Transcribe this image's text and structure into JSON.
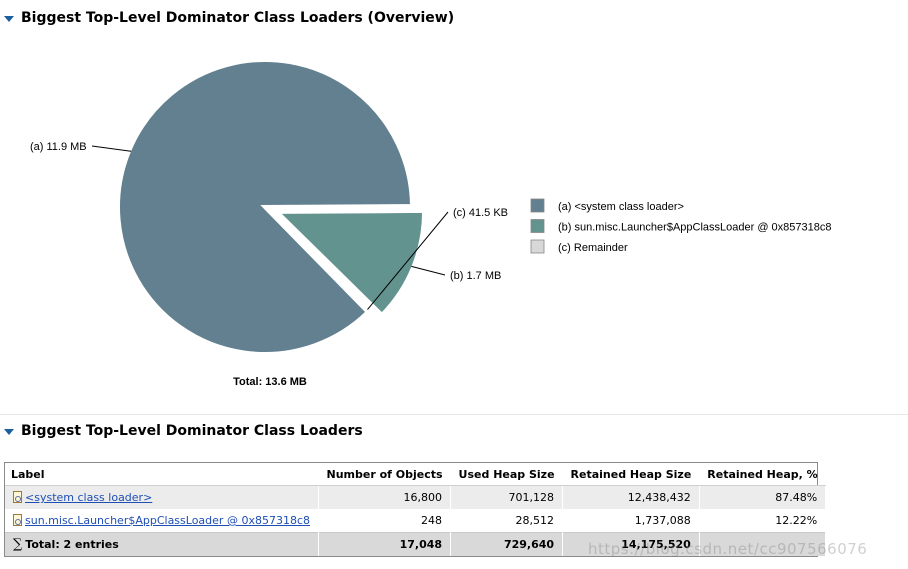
{
  "overview": {
    "title": "Biggest Top-Level Dominator Class Loaders (Overview)",
    "toggle_icon": "triangle-down-icon"
  },
  "chart_data": {
    "type": "pie",
    "total_label": "Total: 13.6 MB",
    "slices": [
      {
        "key": "a",
        "label": "(a)  11.9 MB",
        "value_mb": 11.9,
        "legend": "(a)  <system class loader>",
        "color": "#62808f"
      },
      {
        "key": "b",
        "label": "(b)  1.7 MB",
        "value_mb": 1.7,
        "legend": "(b)  sun.misc.Launcher$AppClassLoader @ 0x857318c8",
        "color": "#63938f",
        "exploded": true
      },
      {
        "key": "c",
        "label": "(c)  41.5 KB",
        "value_mb": 0.0405,
        "legend": "(c)  Remainder",
        "color": "#d8d8d8"
      }
    ]
  },
  "table_section": {
    "title": "Biggest Top-Level Dominator Class Loaders",
    "toggle_icon": "triangle-down-icon",
    "columns": [
      "Label",
      "Number of Objects",
      "Used Heap Size",
      "Retained Heap Size",
      "Retained Heap, %"
    ],
    "rows": [
      {
        "label": "<system class loader>",
        "objects": "16,800",
        "used": "701,128",
        "retained": "12,438,432",
        "percent": "87.48%",
        "icon": "class-loader-icon"
      },
      {
        "label": "sun.misc.Launcher$AppClassLoader @ 0x857318c8",
        "objects": "248",
        "used": "28,512",
        "retained": "1,737,088",
        "percent": "12.22%",
        "icon": "class-loader-icon"
      }
    ],
    "total": {
      "sigma": "∑",
      "label": "Total: 2 entries",
      "objects": "17,048",
      "used": "729,640",
      "retained": "14,175,520",
      "percent": ""
    }
  },
  "watermark": "https://blog.csdn.net/cc907566076"
}
